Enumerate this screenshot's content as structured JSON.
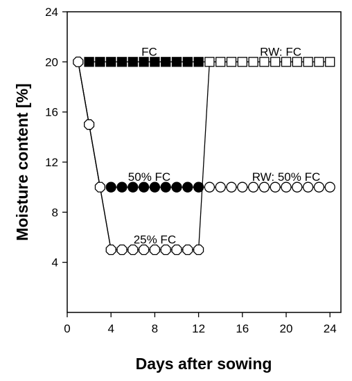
{
  "chart_data": {
    "type": "scatter",
    "title": "",
    "xlabel": "Days after sowing",
    "ylabel": "Moisture content [%]",
    "xlim": [
      0,
      25
    ],
    "ylim": [
      0,
      24
    ],
    "xticks": [
      0,
      4,
      8,
      12,
      16,
      20,
      24
    ],
    "yticks": [
      4,
      8,
      12,
      16,
      20,
      24
    ],
    "grid": false,
    "legend": "none",
    "series": [
      {
        "marker": "square",
        "fill": "#000000",
        "points": [
          [
            2,
            20
          ],
          [
            3,
            20
          ],
          [
            4,
            20
          ],
          [
            5,
            20
          ],
          [
            6,
            20
          ],
          [
            7,
            20
          ],
          [
            8,
            20
          ],
          [
            9,
            20
          ],
          [
            10,
            20
          ],
          [
            11,
            20
          ],
          [
            12,
            20
          ]
        ]
      },
      {
        "marker": "square",
        "fill": "#ffffff",
        "points": [
          [
            13,
            20
          ],
          [
            14,
            20
          ],
          [
            15,
            20
          ],
          [
            16,
            20
          ],
          [
            17,
            20
          ],
          [
            18,
            20
          ],
          [
            19,
            20
          ],
          [
            20,
            20
          ],
          [
            21,
            20
          ],
          [
            22,
            20
          ],
          [
            23,
            20
          ],
          [
            24,
            20
          ]
        ]
      },
      {
        "marker": "circle",
        "fill": "#000000",
        "points": [
          [
            4,
            10
          ],
          [
            5,
            10
          ],
          [
            6,
            10
          ],
          [
            7,
            10
          ],
          [
            8,
            10
          ],
          [
            9,
            10
          ],
          [
            10,
            10
          ],
          [
            11,
            10
          ],
          [
            12,
            10
          ]
        ]
      },
      {
        "marker": "circle",
        "fill": "#ffffff",
        "points": [
          [
            13,
            10
          ],
          [
            14,
            10
          ],
          [
            15,
            10
          ],
          [
            16,
            10
          ],
          [
            17,
            10
          ],
          [
            18,
            10
          ],
          [
            19,
            10
          ],
          [
            20,
            10
          ],
          [
            21,
            10
          ],
          [
            22,
            10
          ],
          [
            23,
            10
          ],
          [
            24,
            10
          ]
        ]
      },
      {
        "marker": "hexagon",
        "fill": "#ffffff",
        "points": [
          [
            1,
            20
          ],
          [
            2,
            15
          ],
          [
            3,
            10
          ],
          [
            4,
            5
          ],
          [
            5,
            5
          ],
          [
            6,
            5
          ],
          [
            7,
            5
          ],
          [
            8,
            5
          ],
          [
            9,
            5
          ],
          [
            10,
            5
          ],
          [
            11,
            5
          ],
          [
            12,
            5
          ]
        ]
      }
    ],
    "connector_lines": [
      {
        "points": [
          [
            1,
            20
          ],
          [
            3,
            10
          ]
        ]
      },
      {
        "points": [
          [
            1,
            20
          ],
          [
            4,
            5
          ]
        ]
      },
      {
        "points": [
          [
            12,
            10
          ],
          [
            13,
            10
          ]
        ]
      },
      {
        "points": [
          [
            12,
            5
          ],
          [
            13,
            20
          ]
        ]
      },
      {
        "points": [
          [
            12,
            20
          ],
          [
            13,
            20
          ]
        ]
      }
    ],
    "annotations": [
      {
        "text": "FC",
        "x": 7.5,
        "y": 20.5
      },
      {
        "text": "RW: FC",
        "x": 19.5,
        "y": 20.5
      },
      {
        "text": "50% FC",
        "x": 7.5,
        "y": 10.5
      },
      {
        "text": "RW: 50% FC",
        "x": 20,
        "y": 10.5
      },
      {
        "text": "25% FC",
        "x": 8,
        "y": 5.5
      }
    ]
  }
}
